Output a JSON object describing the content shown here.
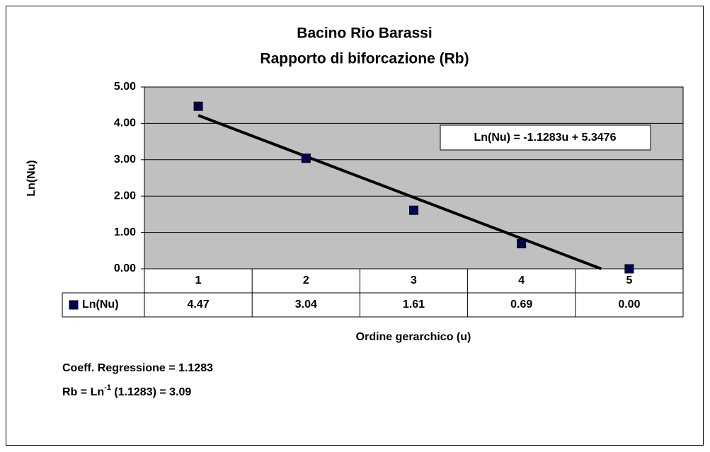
{
  "chart_data": {
    "type": "line",
    "title": [
      "Bacino Rio Barassi",
      "Rapporto di biforcazione (Rb)"
    ],
    "y_label": "Ln(Nu)",
    "x_label": "Ordine gerarchico (u)",
    "categories": [
      "1",
      "2",
      "3",
      "4",
      "5"
    ],
    "series": [
      {
        "name": "Ln(Nu)",
        "color": "#000080",
        "values": [
          4.47,
          3.04,
          1.61,
          0.69,
          0.0
        ],
        "value_labels": [
          "4.47",
          "3.04",
          "1.61",
          "0.69",
          "0.00"
        ]
      }
    ],
    "ylim": [
      0,
      5
    ],
    "yticks": [
      {
        "value": 0,
        "label": "0.00"
      },
      {
        "value": 1,
        "label": "1.00"
      },
      {
        "value": 2,
        "label": "2.00"
      },
      {
        "value": 3,
        "label": "3.00"
      },
      {
        "value": 4,
        "label": "4.00"
      },
      {
        "value": 5,
        "label": "5.00"
      }
    ],
    "grid": true,
    "plot_background": "#c0c0c0",
    "trendline": {
      "slope": -1.1283,
      "intercept": 5.3476,
      "label": "Ln(Nu) = -1.1283u + 5.3476"
    },
    "notes": {
      "coefficient": "Coeff. Regressione = 1.1283",
      "rb_prefix": "Rb = Ln",
      "rb_sup": "-1",
      "rb_suffix": " (1.1283) = 3.09"
    }
  }
}
